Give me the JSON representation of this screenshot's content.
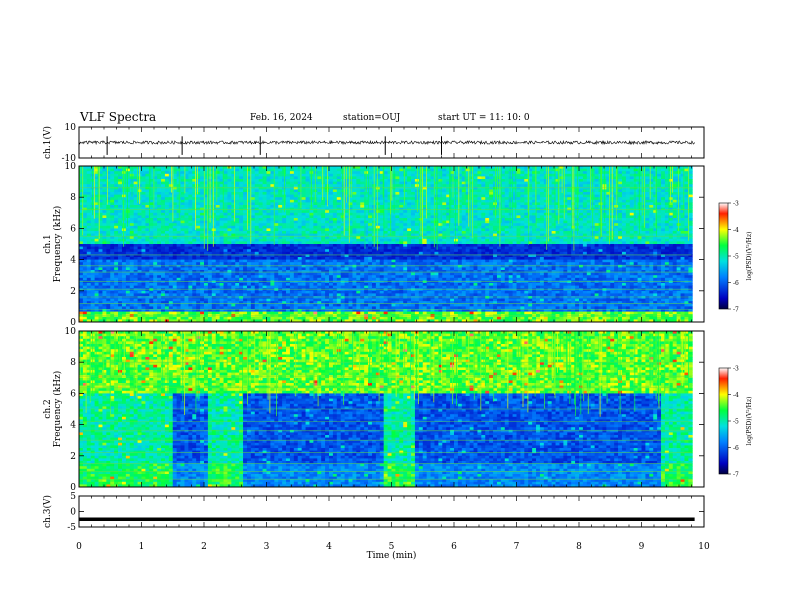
{
  "header": {
    "title": "VLF Spectra",
    "date": "Feb. 16, 2024",
    "station": "station=OUJ",
    "start": "start UT =   11: 10: 0"
  },
  "colors": {
    "spectrogram_low": "#1030a0",
    "spectrogram_mid": "#20c8e0",
    "spectrogram_high": "#ffff00",
    "waveform": "#000000"
  },
  "chart_data": [
    {
      "type": "line",
      "panel": "ch1-waveform",
      "ylabel": "ch.1(V)",
      "yticks": [
        "10",
        "-10"
      ],
      "ylim": [
        -10,
        10
      ],
      "xlim": [
        0,
        10
      ],
      "description_values": {
        "baseline": 0,
        "noise_amplitude": 1,
        "spikes_min": [
          0.45,
          1.65,
          2.9,
          4.9,
          5.8
        ]
      }
    },
    {
      "type": "heatmap",
      "panel": "ch1-spectrogram",
      "ylabel": "Frequency (kHz)",
      "channel_label": "ch.1",
      "yticks": [
        "0",
        "2",
        "4",
        "6",
        "8",
        "10"
      ],
      "ylim": [
        0,
        10
      ],
      "xlim": [
        0,
        10
      ],
      "colorbar": {
        "label": "log(PSD)(V²/Hz)",
        "ticks": [
          "-3",
          "-4",
          "-5",
          "-6",
          "-7"
        ],
        "range": [
          -7,
          -3
        ]
      }
    },
    {
      "type": "heatmap",
      "panel": "ch2-spectrogram",
      "ylabel": "Frequency (kHz)",
      "channel_label": "ch.2",
      "yticks": [
        "0",
        "2",
        "4",
        "6",
        "8",
        "10"
      ],
      "ylim": [
        0,
        10
      ],
      "xlim": [
        0,
        10
      ],
      "colorbar": {
        "label": "log(PSD)(V²/Hz)",
        "ticks": [
          "-3",
          "-4",
          "-5",
          "-6",
          "-7"
        ],
        "range": [
          -7,
          -3
        ]
      },
      "bright_intervals_min": [
        [
          0,
          1.5
        ],
        [
          2.05,
          2.6
        ],
        [
          4.85,
          5.35
        ],
        [
          9.3,
          9.8
        ]
      ]
    },
    {
      "type": "line",
      "panel": "ch3-waveform",
      "ylabel": "ch.3(V)",
      "yticks": [
        "5",
        "0",
        "-5"
      ],
      "ylim": [
        -5,
        5
      ],
      "xlim": [
        0,
        10
      ],
      "xlabel": "Time (min)",
      "xticks": [
        "0",
        "1",
        "2",
        "3",
        "4",
        "5",
        "6",
        "7",
        "8",
        "9",
        "10"
      ],
      "description_values": {
        "level": -2.5
      }
    }
  ]
}
